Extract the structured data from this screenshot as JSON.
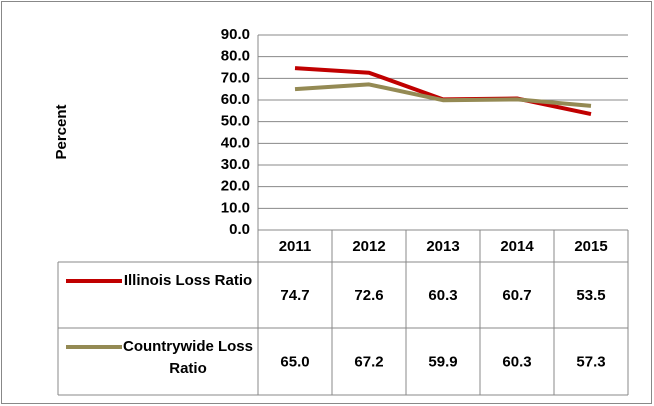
{
  "chart_data": {
    "type": "line",
    "y_label": "Percent",
    "categories": [
      "2011",
      "2012",
      "2013",
      "2014",
      "2015"
    ],
    "series": [
      {
        "name": "Illinois Loss Ratio",
        "color": "#c00000",
        "values": [
          74.7,
          72.6,
          60.3,
          60.7,
          53.5
        ],
        "value_labels": [
          "74.7",
          "72.6",
          "60.3",
          "60.7",
          "53.5"
        ]
      },
      {
        "name": "Countrywide Loss Ratio",
        "color": "#948a54",
        "values": [
          65.0,
          67.2,
          59.9,
          60.3,
          57.3
        ],
        "value_labels": [
          "65.0",
          "67.2",
          "59.9",
          "60.3",
          "57.3"
        ]
      }
    ],
    "ylim": [
      0,
      90
    ],
    "yticks": [
      {
        "value": 0,
        "label": "0.0"
      },
      {
        "value": 10,
        "label": "10.0"
      },
      {
        "value": 20,
        "label": "20.0"
      },
      {
        "value": 30,
        "label": "30.0"
      },
      {
        "value": 40,
        "label": "40.0"
      },
      {
        "value": 50,
        "label": "50.0"
      },
      {
        "value": 60,
        "label": "60.0"
      },
      {
        "value": 70,
        "label": "70.0"
      },
      {
        "value": 80,
        "label": "80.0"
      },
      {
        "value": 90,
        "label": "90.0"
      }
    ],
    "grid": true
  }
}
